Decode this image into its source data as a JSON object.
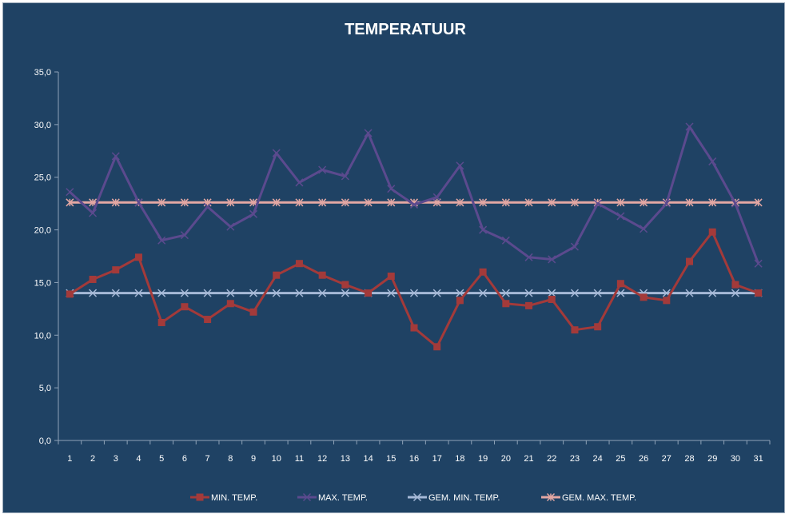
{
  "chart_data": {
    "type": "line",
    "title": "TEMPERATUUR",
    "xlabel": "",
    "ylabel": "",
    "ylim": [
      0,
      35
    ],
    "y_ticks": [
      "0,0",
      "5,0",
      "10,0",
      "15,0",
      "20,0",
      "25,0",
      "30,0",
      "35,0"
    ],
    "x": [
      "1",
      "2",
      "3",
      "4",
      "5",
      "6",
      "7",
      "8",
      "9",
      "10",
      "11",
      "12",
      "13",
      "14",
      "15",
      "16",
      "17",
      "18",
      "19",
      "20",
      "21",
      "22",
      "23",
      "24",
      "25",
      "26",
      "27",
      "28",
      "29",
      "30",
      "31"
    ],
    "grid": false,
    "legend_position": "bottom",
    "series": [
      {
        "name": "MIN. TEMP.",
        "color": "#a33a3a",
        "marker": "square",
        "values": [
          13.9,
          15.3,
          16.2,
          17.4,
          11.2,
          12.7,
          11.5,
          13.0,
          12.2,
          15.7,
          16.8,
          15.7,
          14.8,
          14.0,
          15.6,
          10.7,
          8.9,
          13.3,
          16.0,
          13.0,
          12.8,
          13.4,
          10.5,
          10.8,
          14.9,
          13.6,
          13.3,
          17.0,
          19.8,
          14.8,
          14.0
        ]
      },
      {
        "name": "MAX. TEMP.",
        "color": "#5b4a8e",
        "marker": "x",
        "values": [
          23.6,
          21.6,
          27.0,
          22.6,
          19.0,
          19.5,
          22.2,
          20.3,
          21.5,
          27.3,
          24.5,
          25.7,
          25.1,
          29.2,
          23.9,
          22.4,
          23.1,
          26.1,
          20.0,
          19.0,
          17.4,
          17.2,
          18.4,
          22.5,
          21.3,
          20.1,
          22.5,
          29.8,
          26.5,
          22.5,
          16.8
        ]
      },
      {
        "name": "GEM. MIN. TEMP.",
        "color": "#a6b9d7",
        "marker": "x",
        "values": [
          14.0,
          14.0,
          14.0,
          14.0,
          14.0,
          14.0,
          14.0,
          14.0,
          14.0,
          14.0,
          14.0,
          14.0,
          14.0,
          14.0,
          14.0,
          14.0,
          14.0,
          14.0,
          14.0,
          14.0,
          14.0,
          14.0,
          14.0,
          14.0,
          14.0,
          14.0,
          14.0,
          14.0,
          14.0,
          14.0,
          14.0
        ]
      },
      {
        "name": "GEM. MAX. TEMP.",
        "color": "#e3a7a3",
        "marker": "asterisk",
        "values": [
          22.6,
          22.6,
          22.6,
          22.6,
          22.6,
          22.6,
          22.6,
          22.6,
          22.6,
          22.6,
          22.6,
          22.6,
          22.6,
          22.6,
          22.6,
          22.6,
          22.6,
          22.6,
          22.6,
          22.6,
          22.6,
          22.6,
          22.6,
          22.6,
          22.6,
          22.6,
          22.6,
          22.6,
          22.6,
          22.6,
          22.6
        ]
      }
    ]
  }
}
